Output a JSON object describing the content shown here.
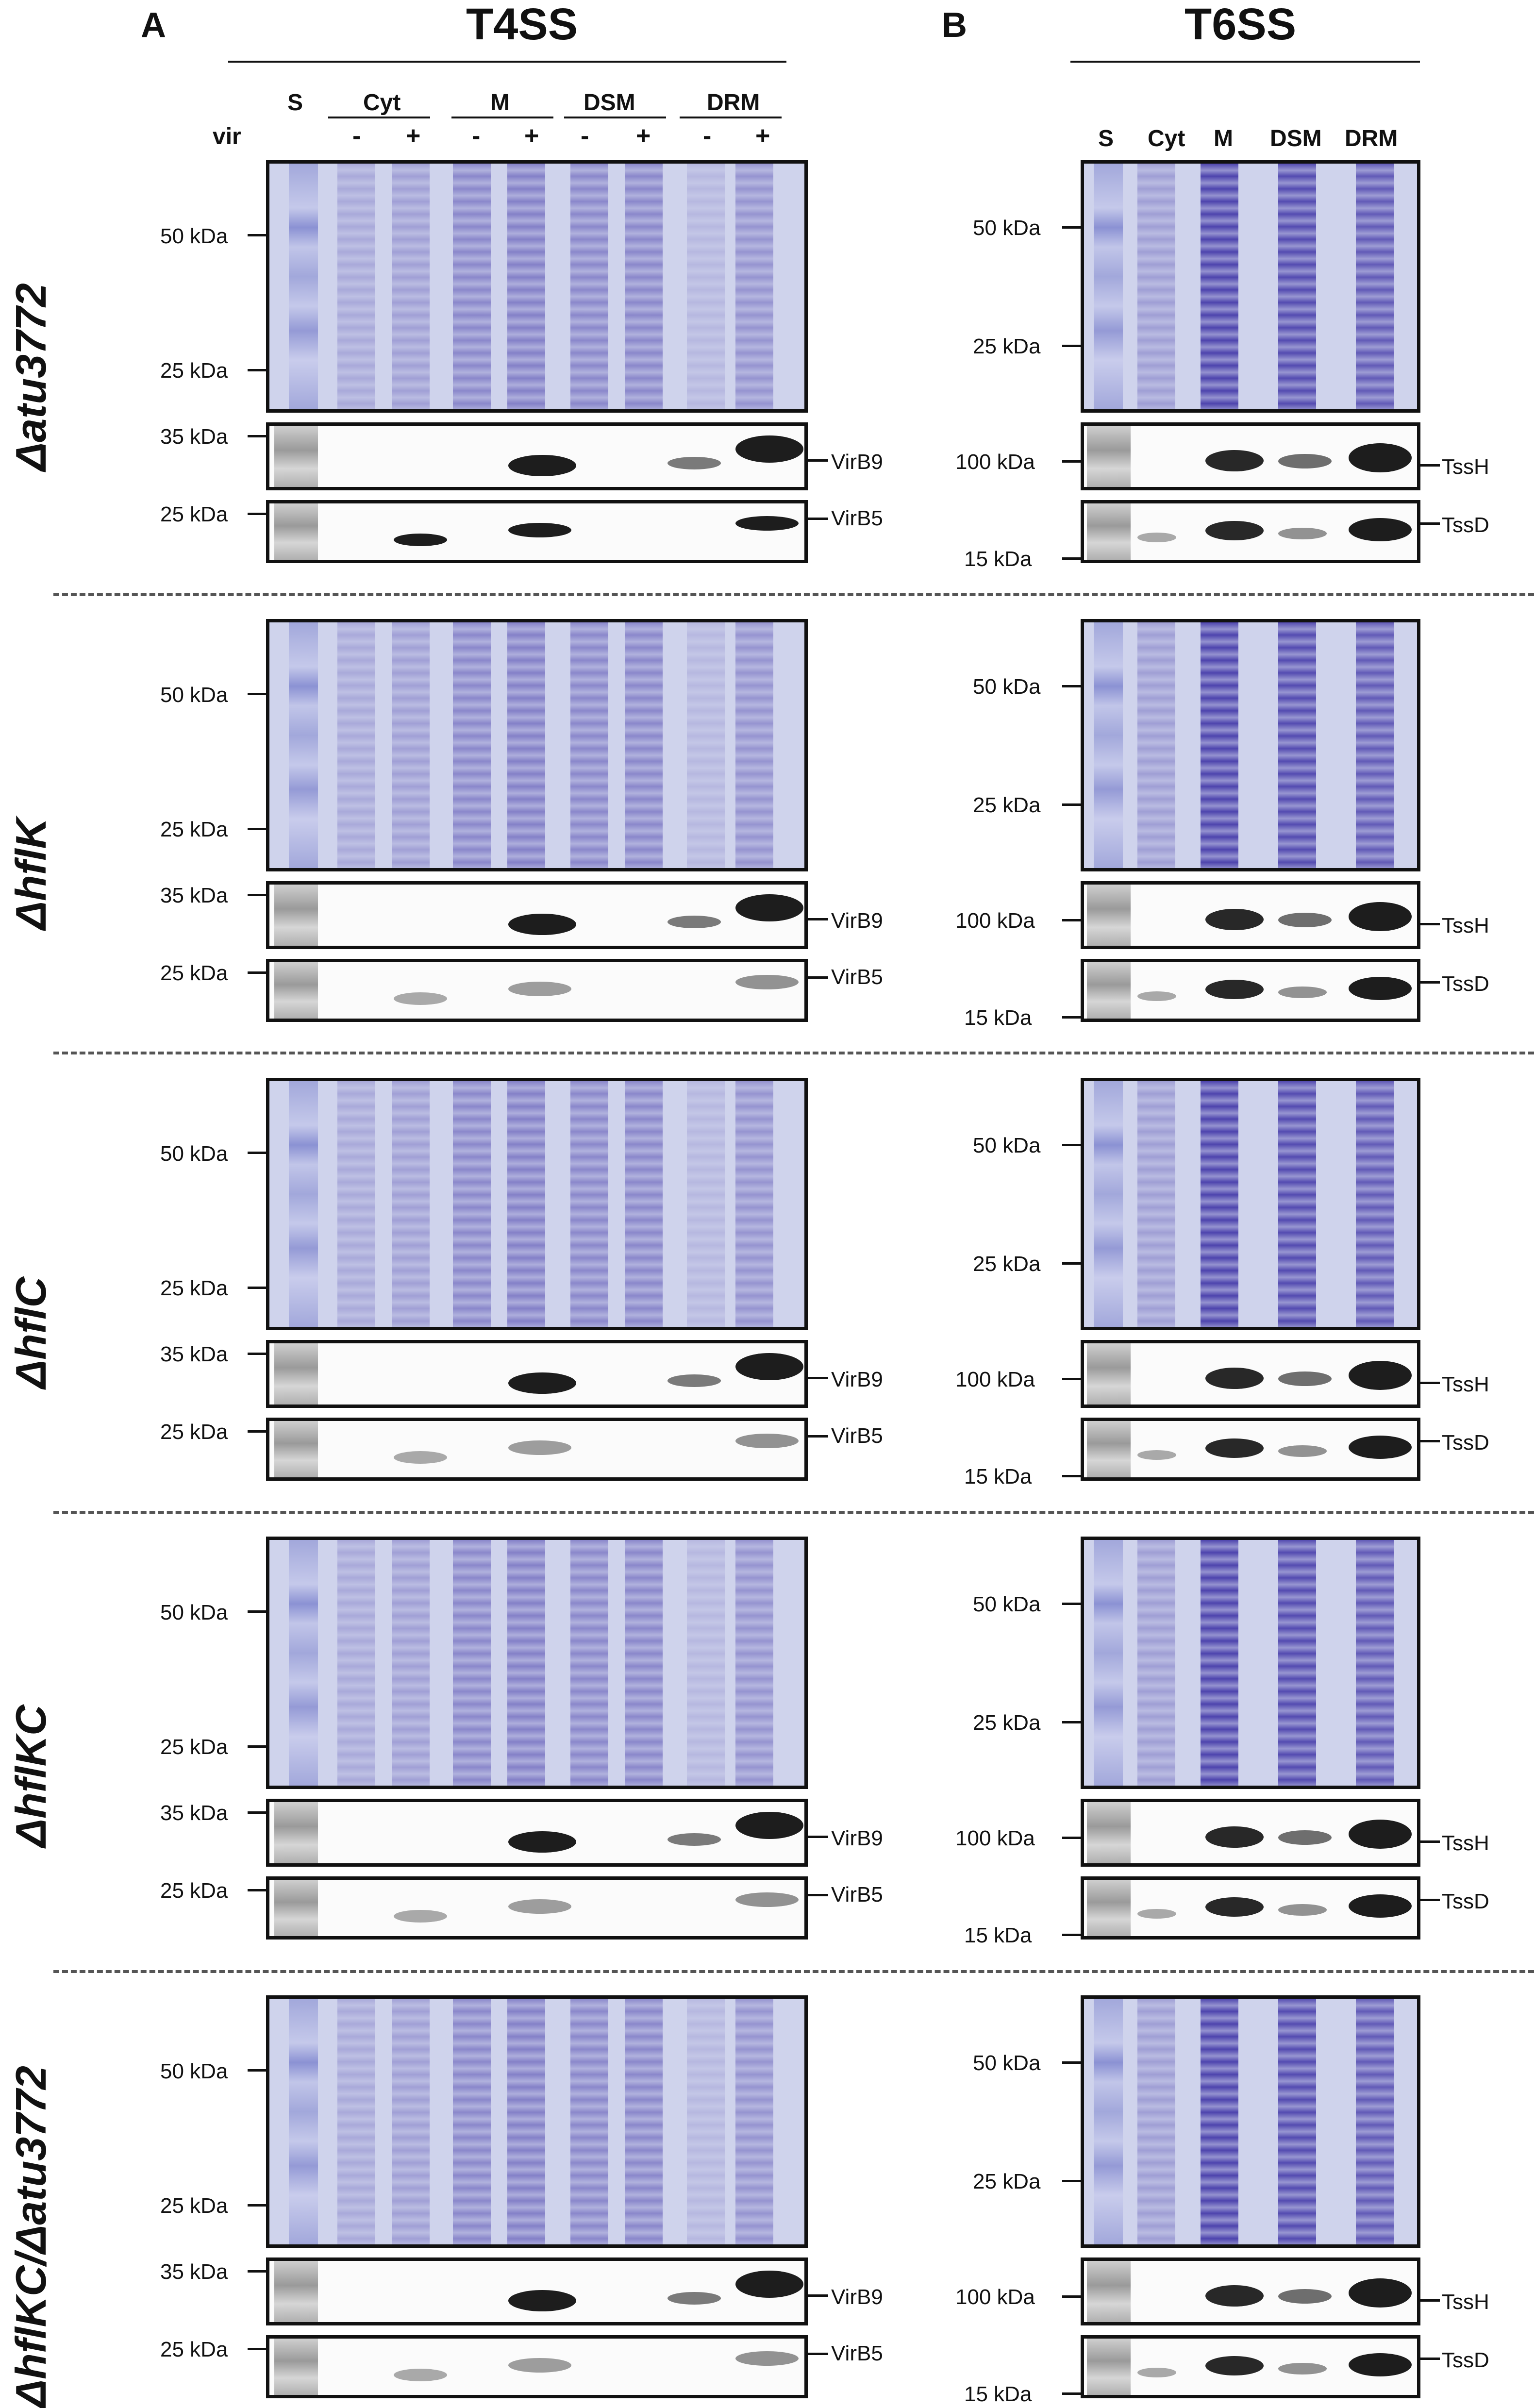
{
  "panels": [
    {
      "letter": "A",
      "title": "T4SS"
    },
    {
      "letter": "B",
      "title": "T6SS"
    }
  ],
  "t4ss": {
    "lane_labels": [
      "S",
      "Cyt",
      "M",
      "DSM",
      "DRM"
    ],
    "row_label": "vir",
    "vir_signs": [
      "-",
      "+",
      "-",
      "+",
      "-",
      "+",
      "-",
      "+"
    ],
    "coomassie_markers": [
      "50 kDa",
      "25 kDa"
    ],
    "blot_markers": [
      "35 kDa",
      "25 kDa"
    ],
    "proteins": [
      "VirB9",
      "VirB5"
    ]
  },
  "t6ss": {
    "lane_labels": [
      "S",
      "Cyt",
      "M",
      "DSM",
      "DRM"
    ],
    "coomassie_markers": [
      "50 kDa",
      "25 kDa"
    ],
    "blot_markers": [
      "100 kDa",
      "15 kDa"
    ],
    "proteins": [
      "TssH",
      "TssD"
    ]
  },
  "strains": [
    "Δatu3772",
    "ΔhflK",
    "ΔhflC",
    "ΔhflKC",
    "ΔhflKC/Δatu3772"
  ]
}
